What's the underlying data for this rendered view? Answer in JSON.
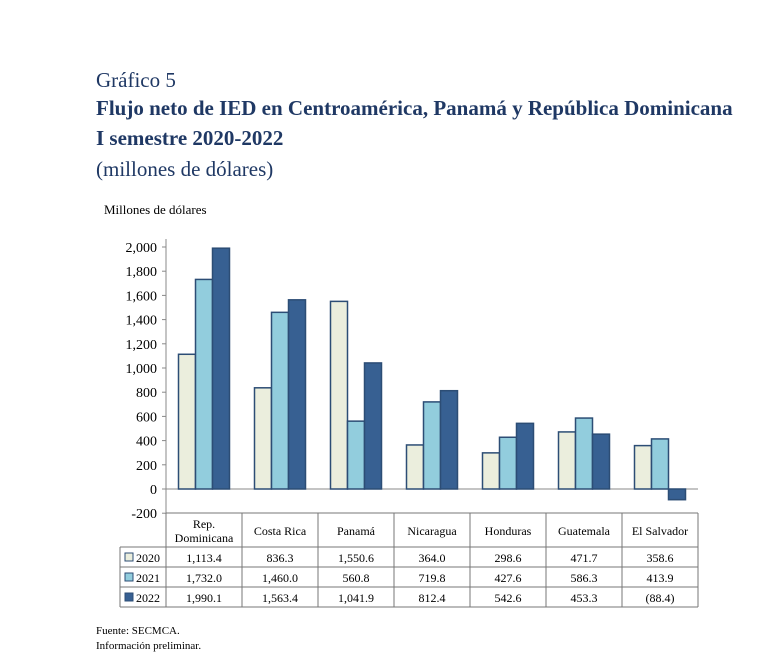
{
  "figure_label": "Gráfico 5",
  "title_line1": "Flujo neto de IED en Centroamérica, Panamá y República Dominicana",
  "title_line2": "I semestre 2020-2022",
  "subtitle": "(millones de dólares)",
  "source": "Fuente: SECMCA.",
  "note": "Información preliminar.",
  "chart_data": {
    "type": "bar",
    "ylabel": "Millones de dólares",
    "ylim": [
      -200,
      2000
    ],
    "yticks": [
      -200,
      0,
      200,
      400,
      600,
      800,
      1000,
      1200,
      1400,
      1600,
      1800,
      2000
    ],
    "ytick_labels": [
      "-200",
      "0",
      "200",
      "400",
      "600",
      "800",
      "1,000",
      "1,200",
      "1,400",
      "1,600",
      "1,800",
      "2,000"
    ],
    "categories": [
      [
        "Rep.",
        "Dominicana"
      ],
      [
        "Costa Rica"
      ],
      [
        "Panamá"
      ],
      [
        "Nicaragua"
      ],
      [
        "Honduras"
      ],
      [
        "Guatemala"
      ],
      [
        "El Salvador"
      ]
    ],
    "series": [
      {
        "name": "2020",
        "color": "#EBEEDD",
        "values": [
          1113.4,
          836.3,
          1550.6,
          364.0,
          298.6,
          471.7,
          358.6
        ],
        "labels": [
          "1,113.4",
          "836.3",
          "1,550.6",
          "364.0",
          "298.6",
          "471.7",
          "358.6"
        ]
      },
      {
        "name": "2021",
        "color": "#92CDDD",
        "values": [
          1732.0,
          1460.0,
          560.8,
          719.8,
          427.6,
          586.3,
          413.9
        ],
        "labels": [
          "1,732.0",
          "1,460.0",
          "560.8",
          "719.8",
          "427.6",
          "586.3",
          "413.9"
        ]
      },
      {
        "name": "2022",
        "color": "#376092",
        "values": [
          1990.1,
          1563.4,
          1041.9,
          812.4,
          542.6,
          453.3,
          -88.4
        ],
        "labels": [
          "1,990.1",
          "1,563.4",
          "1,041.9",
          "812.4",
          "542.6",
          "453.3",
          "(88.4)"
        ]
      }
    ],
    "border_color": "#2C4D75",
    "legend": "data-table"
  }
}
